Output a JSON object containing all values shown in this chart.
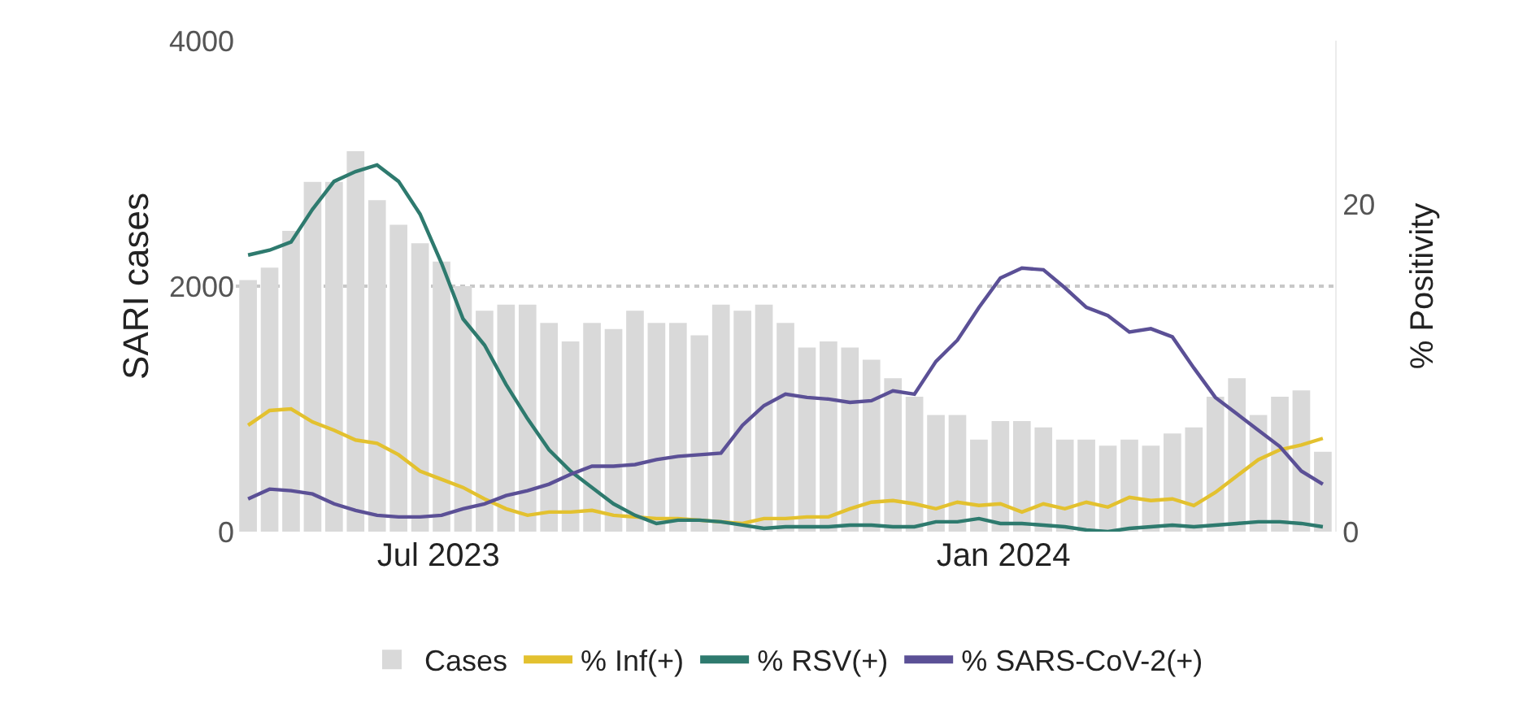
{
  "chart_data": {
    "type": "bar",
    "ylabel": "SARI cases",
    "y2label": "% Positivity",
    "x": [
      "2023-04-30",
      "2023-05-07",
      "2023-05-14",
      "2023-05-21",
      "2023-05-28",
      "2023-06-04",
      "2023-06-11",
      "2023-06-18",
      "2023-06-25",
      "2023-07-02",
      "2023-07-09",
      "2023-07-16",
      "2023-07-23",
      "2023-07-30",
      "2023-08-06",
      "2023-08-13",
      "2023-08-20",
      "2023-08-27",
      "2023-09-03",
      "2023-09-10",
      "2023-09-17",
      "2023-09-24",
      "2023-10-01",
      "2023-10-08",
      "2023-10-15",
      "2023-10-22",
      "2023-10-29",
      "2023-11-05",
      "2023-11-12",
      "2023-11-19",
      "2023-11-26",
      "2023-12-03",
      "2023-12-10",
      "2023-12-17",
      "2023-12-24",
      "2023-12-31",
      "2024-01-07",
      "2024-01-14",
      "2024-01-21",
      "2024-01-28",
      "2024-02-04",
      "2024-02-11",
      "2024-02-18",
      "2024-02-25",
      "2024-03-03",
      "2024-03-10",
      "2024-03-17",
      "2024-03-24",
      "2024-03-31",
      "2024-04-07",
      "2024-04-14"
    ],
    "series": [
      {
        "name": "Cases",
        "color": "#d9d9d9",
        "values": [
          2050,
          2150,
          2450,
          2850,
          2850,
          3100,
          2700,
          2500,
          2350,
          2200,
          2000,
          1800,
          1850,
          1850,
          1700,
          1550,
          1700,
          1650,
          1800,
          1700,
          1700,
          1600,
          1850,
          1800,
          1850,
          1700,
          1500,
          1550,
          1500,
          1400,
          1250,
          1100,
          950,
          950,
          750,
          900,
          900,
          850,
          750,
          750,
          700,
          750,
          700,
          800,
          850,
          1100,
          1250,
          950,
          1100,
          1150,
          650
        ]
      },
      {
        "name": "% Inf(+)",
        "type": "line",
        "axis": "y2",
        "color": "#e3c12f",
        "values": [
          6.5,
          7.4,
          7.5,
          6.7,
          6.2,
          5.6,
          5.4,
          4.7,
          3.7,
          3.2,
          2.7,
          2.0,
          1.4,
          1.0,
          1.2,
          1.2,
          1.3,
          1.0,
          0.9,
          0.8,
          0.8,
          0.7,
          0.6,
          0.5,
          0.8,
          0.8,
          0.9,
          0.9,
          1.4,
          1.8,
          1.9,
          1.7,
          1.4,
          1.8,
          1.6,
          1.7,
          1.2,
          1.7,
          1.4,
          1.8,
          1.5,
          2.1,
          1.9,
          2.0,
          1.6,
          2.4,
          3.4,
          4.4,
          5.0,
          5.3,
          5.7
        ]
      },
      {
        "name": "% RSV(+)",
        "type": "line",
        "axis": "y2",
        "color": "#2e7a6e",
        "values": [
          16.9,
          17.2,
          17.7,
          19.7,
          21.4,
          22.0,
          22.4,
          21.4,
          19.4,
          16.4,
          13.0,
          11.4,
          9.0,
          6.9,
          5.0,
          3.7,
          2.7,
          1.7,
          1.0,
          0.5,
          0.7,
          0.7,
          0.6,
          0.4,
          0.2,
          0.3,
          0.3,
          0.3,
          0.4,
          0.4,
          0.3,
          0.3,
          0.6,
          0.6,
          0.8,
          0.5,
          0.5,
          0.4,
          0.3,
          0.1,
          0.0,
          0.2,
          0.3,
          0.4,
          0.3,
          0.4,
          0.5,
          0.6,
          0.6,
          0.5,
          0.3
        ]
      },
      {
        "name": "% SARS-CoV-2(+)",
        "type": "line",
        "axis": "y2",
        "color": "#5b5096",
        "values": [
          2.0,
          2.6,
          2.5,
          2.3,
          1.7,
          1.3,
          1.0,
          0.9,
          0.9,
          1.0,
          1.4,
          1.7,
          2.2,
          2.5,
          2.9,
          3.5,
          4.0,
          4.0,
          4.1,
          4.4,
          4.6,
          4.7,
          4.8,
          6.5,
          7.7,
          8.4,
          8.2,
          8.1,
          7.9,
          8.0,
          8.6,
          8.4,
          10.4,
          11.7,
          13.7,
          15.5,
          16.1,
          16.0,
          14.9,
          13.7,
          13.2,
          12.2,
          12.4,
          11.9,
          10.0,
          8.2,
          7.2,
          6.2,
          5.2,
          3.7,
          2.9
        ]
      }
    ],
    "xlim": [
      "2023-04-26",
      "2024-04-18"
    ],
    "xticks": [
      {
        "value": "2023-07-01",
        "label": "Jul 2023"
      },
      {
        "value": "2024-01-01",
        "label": "Jan 2024"
      }
    ],
    "ylim": [
      0,
      4000
    ],
    "yticks": [
      0,
      2000,
      4000
    ],
    "y2lim": [
      0,
      30
    ],
    "y2ticks": [
      0,
      20
    ],
    "grid": "y",
    "legend": "bottom",
    "marker": "none",
    "line_style": "solid"
  }
}
